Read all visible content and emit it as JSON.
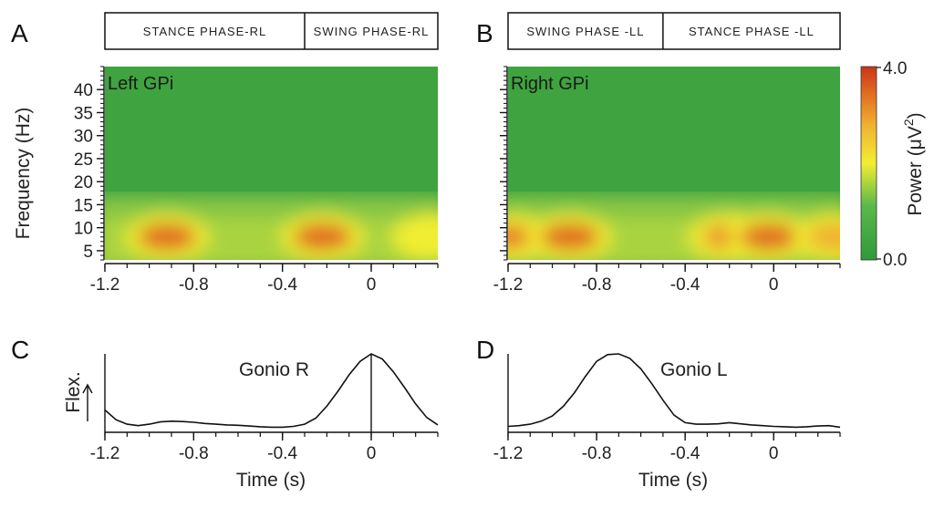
{
  "figure": {
    "panel_labels": [
      "A",
      "B",
      "C",
      "D"
    ],
    "colorbar": {
      "max_label": "4.0",
      "min_label": "0.0",
      "title": "Power (μV²)",
      "title_text": "Power (μV",
      "title_sup": "2",
      "title_close": ")",
      "colors": [
        "#2f9a3c",
        "#5bb84a",
        "#f2ee32",
        "#f0b030",
        "#e06d20",
        "#c8351a"
      ]
    }
  },
  "chart_data": [
    {
      "id": "A",
      "type": "heatmap",
      "title": "Left GPi",
      "ylabel": "Frequency (Hz)",
      "xlabel": "",
      "xlim": [
        -1.2,
        0.3
      ],
      "ylim": [
        3,
        45
      ],
      "x_ticks": [
        -1.2,
        -0.8,
        -0.4,
        0
      ],
      "x_tick_labels": [
        "-1.2",
        "-0.8",
        "-0.4",
        "0"
      ],
      "y_ticks": [
        5,
        10,
        15,
        20,
        25,
        30,
        35,
        40
      ],
      "y_tick_labels": [
        "5",
        "10",
        "15",
        "20",
        "25",
        "30",
        "35",
        "40"
      ],
      "color_range": [
        0.0,
        4.0
      ],
      "phases": [
        {
          "label": "STANCE PHASE-RL",
          "start": -1.2,
          "end": -0.3
        },
        {
          "label": "SWING PHASE-RL",
          "start": -0.3,
          "end": 0.3
        }
      ],
      "power_peaks": [
        {
          "time": -0.92,
          "freq": 8,
          "power": 3.3
        },
        {
          "time": -0.22,
          "freq": 8,
          "power": 3.6
        },
        {
          "time": 0.28,
          "freq": 8,
          "power": 2.4
        }
      ]
    },
    {
      "id": "B",
      "type": "heatmap",
      "title": "Right GPi",
      "ylabel": "",
      "xlabel": "",
      "xlim": [
        -1.2,
        0.3
      ],
      "ylim": [
        3,
        45
      ],
      "x_ticks": [
        -1.2,
        -0.8,
        -0.4,
        0
      ],
      "x_tick_labels": [
        "-1.2",
        "-0.8",
        "-0.4",
        "0"
      ],
      "y_ticks": [
        5,
        10,
        15,
        20,
        25,
        30,
        35,
        40
      ],
      "color_range": [
        0.0,
        4.0
      ],
      "phases": [
        {
          "label": "SWING PHASE -LL",
          "start": -1.2,
          "end": -0.5
        },
        {
          "label": "STANCE PHASE -LL",
          "start": -0.5,
          "end": 0.3
        }
      ],
      "power_peaks": [
        {
          "time": -1.19,
          "freq": 8,
          "power": 3.2
        },
        {
          "time": -0.92,
          "freq": 8,
          "power": 3.3
        },
        {
          "time": -0.2,
          "freq": 8,
          "power": 3.2
        },
        {
          "time": -0.02,
          "freq": 8,
          "power": 3.3
        },
        {
          "time": 0.28,
          "freq": 8,
          "power": 3.0
        }
      ]
    },
    {
      "id": "C",
      "type": "line",
      "title": "Gonio R",
      "ylabel": "Flex.",
      "xlabel": "Time (s)",
      "xlim": [
        -1.2,
        0.3
      ],
      "ylim": [
        0,
        1
      ],
      "x_ticks": [
        -1.2,
        -0.8,
        -0.4,
        0
      ],
      "x_tick_labels": [
        "-1.2",
        "-0.8",
        "-0.4",
        "0"
      ],
      "vline": 0,
      "series": [
        {
          "name": "Gonio R",
          "x": [
            -1.2,
            -1.15,
            -1.1,
            -1.05,
            -1.0,
            -0.95,
            -0.9,
            -0.85,
            -0.8,
            -0.75,
            -0.7,
            -0.65,
            -0.6,
            -0.55,
            -0.5,
            -0.45,
            -0.4,
            -0.35,
            -0.3,
            -0.25,
            -0.2,
            -0.15,
            -0.1,
            -0.05,
            0,
            0.05,
            0.1,
            0.15,
            0.2,
            0.25,
            0.3
          ],
          "y": [
            0.25,
            0.12,
            0.06,
            0.04,
            0.06,
            0.09,
            0.1,
            0.095,
            0.085,
            0.07,
            0.06,
            0.05,
            0.045,
            0.035,
            0.025,
            0.02,
            0.02,
            0.03,
            0.06,
            0.14,
            0.3,
            0.5,
            0.72,
            0.9,
            1.0,
            0.93,
            0.76,
            0.55,
            0.33,
            0.15,
            0.05
          ]
        }
      ]
    },
    {
      "id": "D",
      "type": "line",
      "title": "Gonio L",
      "ylabel": "",
      "xlabel": "Time (s)",
      "xlim": [
        -1.2,
        0.3
      ],
      "ylim": [
        0,
        1
      ],
      "x_ticks": [
        -1.2,
        -0.8,
        -0.4,
        0
      ],
      "x_tick_labels": [
        "-1.2",
        "-0.8",
        "-0.4",
        "0"
      ],
      "series": [
        {
          "name": "Gonio L",
          "x": [
            -1.2,
            -1.15,
            -1.1,
            -1.05,
            -1.0,
            -0.95,
            -0.9,
            -0.85,
            -0.8,
            -0.75,
            -0.7,
            -0.65,
            -0.6,
            -0.55,
            -0.5,
            -0.45,
            -0.4,
            -0.35,
            -0.3,
            -0.25,
            -0.2,
            -0.15,
            -0.1,
            -0.05,
            0,
            0.05,
            0.1,
            0.15,
            0.2,
            0.25,
            0.3
          ],
          "y": [
            0.03,
            0.04,
            0.06,
            0.1,
            0.17,
            0.3,
            0.48,
            0.7,
            0.9,
            0.99,
            1.0,
            0.94,
            0.8,
            0.6,
            0.38,
            0.18,
            0.08,
            0.06,
            0.06,
            0.065,
            0.08,
            0.065,
            0.05,
            0.04,
            0.03,
            0.025,
            0.02,
            0.025,
            0.035,
            0.04,
            0.02
          ]
        }
      ]
    }
  ]
}
